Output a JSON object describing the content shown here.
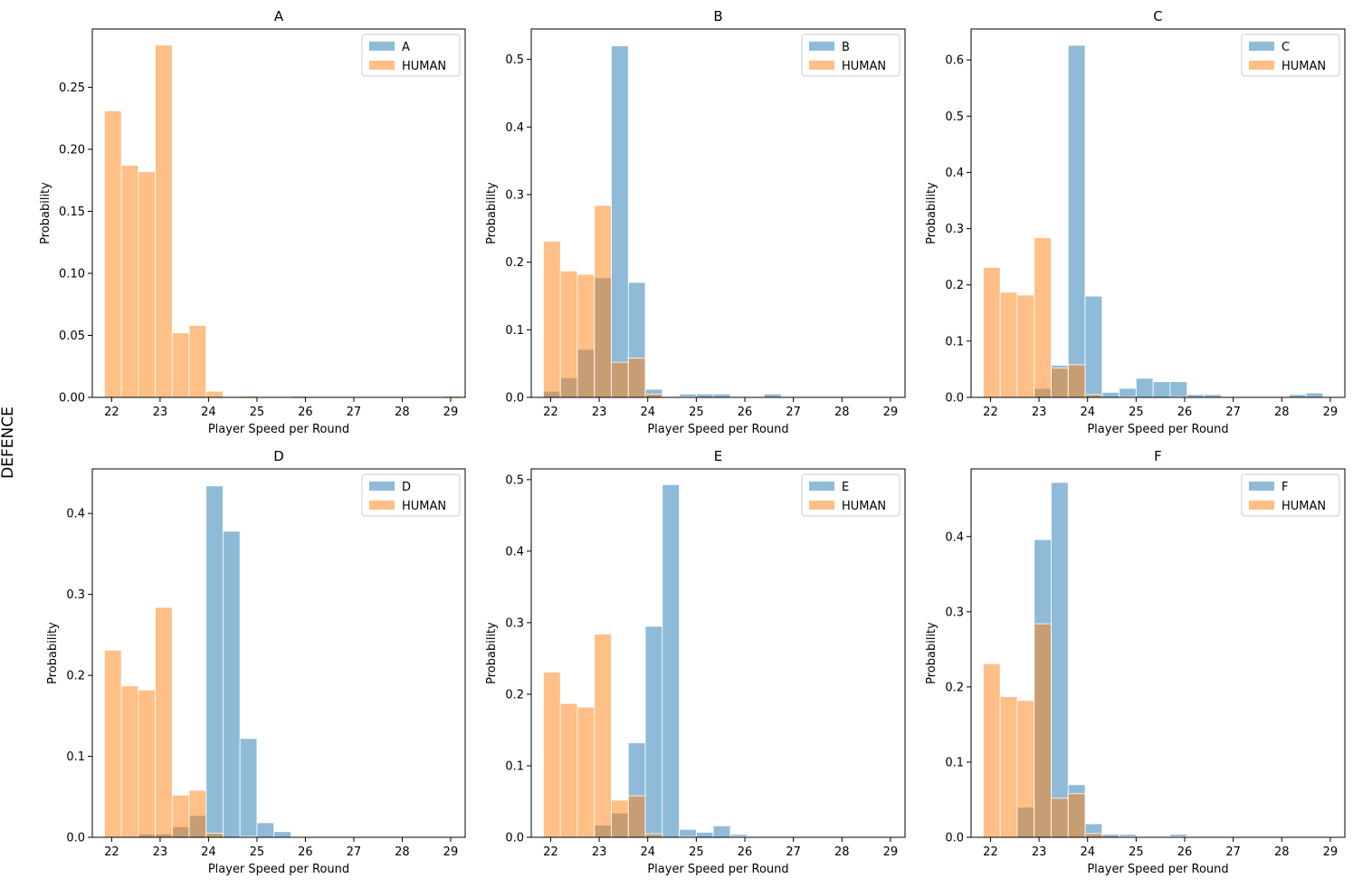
{
  "figure": {
    "row_label": "DEFENCE"
  },
  "colors": {
    "model": "#1f77b4",
    "human": "#ff7f0e"
  },
  "chart_data": [
    {
      "type": "bar",
      "title": "A",
      "xlabel": "Player Speed per Round",
      "ylabel": "Probability",
      "xlim": [
        21.6,
        29.3
      ],
      "ylim": [
        0,
        0.297
      ],
      "xticks": [
        "22",
        "23",
        "24",
        "25",
        "26",
        "27",
        "28",
        "29"
      ],
      "yticks": [
        "0.00",
        "0.05",
        "0.10",
        "0.15",
        "0.20",
        "0.25"
      ],
      "bin_start": 21.85,
      "bin_width": 0.35,
      "legend": [
        "A",
        "HUMAN"
      ],
      "series": [
        {
          "name": "A",
          "values": []
        },
        {
          "name": "HUMAN",
          "values": [
            0.231,
            0.187,
            0.182,
            0.284,
            0.052,
            0.058,
            0.005,
            0,
            0.001,
            0,
            0,
            0.001,
            0,
            0,
            0,
            0,
            0,
            0,
            0,
            0,
            0.001
          ]
        }
      ]
    },
    {
      "type": "bar",
      "title": "B",
      "xlabel": "Player Speed per Round",
      "ylabel": "Probability",
      "xlim": [
        21.6,
        29.3
      ],
      "ylim": [
        0,
        0.545
      ],
      "xticks": [
        "22",
        "23",
        "24",
        "25",
        "26",
        "27",
        "28",
        "29"
      ],
      "yticks": [
        "0.0",
        "0.1",
        "0.2",
        "0.3",
        "0.4",
        "0.5"
      ],
      "bin_start": 21.85,
      "bin_width": 0.35,
      "legend": [
        "B",
        "HUMAN"
      ],
      "series": [
        {
          "name": "B",
          "values": [
            0.009,
            0.029,
            0.071,
            0.177,
            0.52,
            0.17,
            0.012,
            0,
            0.005,
            0.005,
            0.005,
            0,
            0,
            0.005,
            0,
            0,
            0,
            0,
            0,
            0,
            0
          ]
        },
        {
          "name": "HUMAN",
          "values": [
            0.231,
            0.187,
            0.182,
            0.284,
            0.052,
            0.058,
            0.005,
            0,
            0.001,
            0,
            0,
            0.001,
            0,
            0,
            0,
            0,
            0,
            0,
            0,
            0,
            0.001
          ]
        }
      ]
    },
    {
      "type": "bar",
      "title": "C",
      "xlabel": "Player Speed per Round",
      "ylabel": "Probability",
      "xlim": [
        21.6,
        29.3
      ],
      "ylim": [
        0,
        0.655
      ],
      "xticks": [
        "22",
        "23",
        "24",
        "25",
        "26",
        "27",
        "28",
        "29"
      ],
      "yticks": [
        "0.0",
        "0.1",
        "0.2",
        "0.3",
        "0.4",
        "0.5",
        "0.6"
      ],
      "bin_start": 21.85,
      "bin_width": 0.35,
      "legend": [
        "C",
        "HUMAN"
      ],
      "series": [
        {
          "name": "C",
          "values": [
            0,
            0,
            0,
            0.016,
            0.057,
            0.626,
            0.18,
            0.009,
            0.016,
            0.034,
            0.028,
            0.028,
            0.005,
            0.005,
            0,
            0,
            0,
            0,
            0.005,
            0.008,
            0
          ]
        },
        {
          "name": "HUMAN",
          "values": [
            0.231,
            0.187,
            0.182,
            0.284,
            0.052,
            0.058,
            0.005,
            0,
            0.001,
            0,
            0,
            0.001,
            0,
            0,
            0,
            0,
            0,
            0,
            0,
            0,
            0.001
          ]
        }
      ]
    },
    {
      "type": "bar",
      "title": "D",
      "xlabel": "Player Speed per Round",
      "ylabel": "Probability",
      "xlim": [
        21.6,
        29.3
      ],
      "ylim": [
        0,
        0.455
      ],
      "xticks": [
        "22",
        "23",
        "24",
        "25",
        "26",
        "27",
        "28",
        "29"
      ],
      "yticks": [
        "0.0",
        "0.1",
        "0.2",
        "0.3",
        "0.4"
      ],
      "bin_start": 21.85,
      "bin_width": 0.35,
      "legend": [
        "D",
        "HUMAN"
      ],
      "series": [
        {
          "name": "D",
          "values": [
            0,
            0,
            0.004,
            0.004,
            0.013,
            0.027,
            0.434,
            0.378,
            0.122,
            0.018,
            0.007,
            0,
            0,
            0,
            0,
            0,
            0,
            0,
            0,
            0,
            0
          ]
        },
        {
          "name": "HUMAN",
          "values": [
            0.231,
            0.187,
            0.182,
            0.284,
            0.052,
            0.058,
            0.005,
            0,
            0.001,
            0,
            0,
            0.001,
            0,
            0,
            0,
            0,
            0,
            0,
            0,
            0,
            0.001
          ]
        }
      ]
    },
    {
      "type": "bar",
      "title": "E",
      "xlabel": "Player Speed per Round",
      "ylabel": "Probability",
      "xlim": [
        21.6,
        29.3
      ],
      "ylim": [
        0,
        0.515
      ],
      "xticks": [
        "22",
        "23",
        "24",
        "25",
        "26",
        "27",
        "28",
        "29"
      ],
      "yticks": [
        "0.0",
        "0.1",
        "0.2",
        "0.3",
        "0.4",
        "0.5"
      ],
      "bin_start": 21.85,
      "bin_width": 0.35,
      "legend": [
        "E",
        "HUMAN"
      ],
      "series": [
        {
          "name": "E",
          "values": [
            0,
            0,
            0,
            0.017,
            0.034,
            0.132,
            0.295,
            0.493,
            0.011,
            0.007,
            0.016,
            0.004,
            0,
            0,
            0,
            0,
            0,
            0,
            0,
            0,
            0
          ]
        },
        {
          "name": "HUMAN",
          "values": [
            0.231,
            0.187,
            0.182,
            0.284,
            0.052,
            0.058,
            0.005,
            0,
            0.001,
            0,
            0,
            0.001,
            0,
            0,
            0,
            0,
            0,
            0,
            0,
            0,
            0.001
          ]
        }
      ]
    },
    {
      "type": "bar",
      "title": "F",
      "xlabel": "Player Speed per Round",
      "ylabel": "Probability",
      "xlim": [
        21.6,
        29.3
      ],
      "ylim": [
        0,
        0.49
      ],
      "xticks": [
        "22",
        "23",
        "24",
        "25",
        "26",
        "27",
        "28",
        "29"
      ],
      "yticks": [
        "0.0",
        "0.1",
        "0.2",
        "0.3",
        "0.4"
      ],
      "bin_start": 21.85,
      "bin_width": 0.35,
      "legend": [
        "F",
        "HUMAN"
      ],
      "series": [
        {
          "name": "F",
          "values": [
            0,
            0,
            0.04,
            0.396,
            0.472,
            0.07,
            0.018,
            0.004,
            0.004,
            0,
            0,
            0.004,
            0,
            0,
            0,
            0,
            0,
            0,
            0,
            0,
            0
          ]
        },
        {
          "name": "HUMAN",
          "values": [
            0.231,
            0.187,
            0.182,
            0.284,
            0.052,
            0.058,
            0.005,
            0,
            0.001,
            0,
            0,
            0.001,
            0,
            0,
            0,
            0,
            0,
            0,
            0,
            0,
            0.001
          ]
        }
      ]
    }
  ]
}
